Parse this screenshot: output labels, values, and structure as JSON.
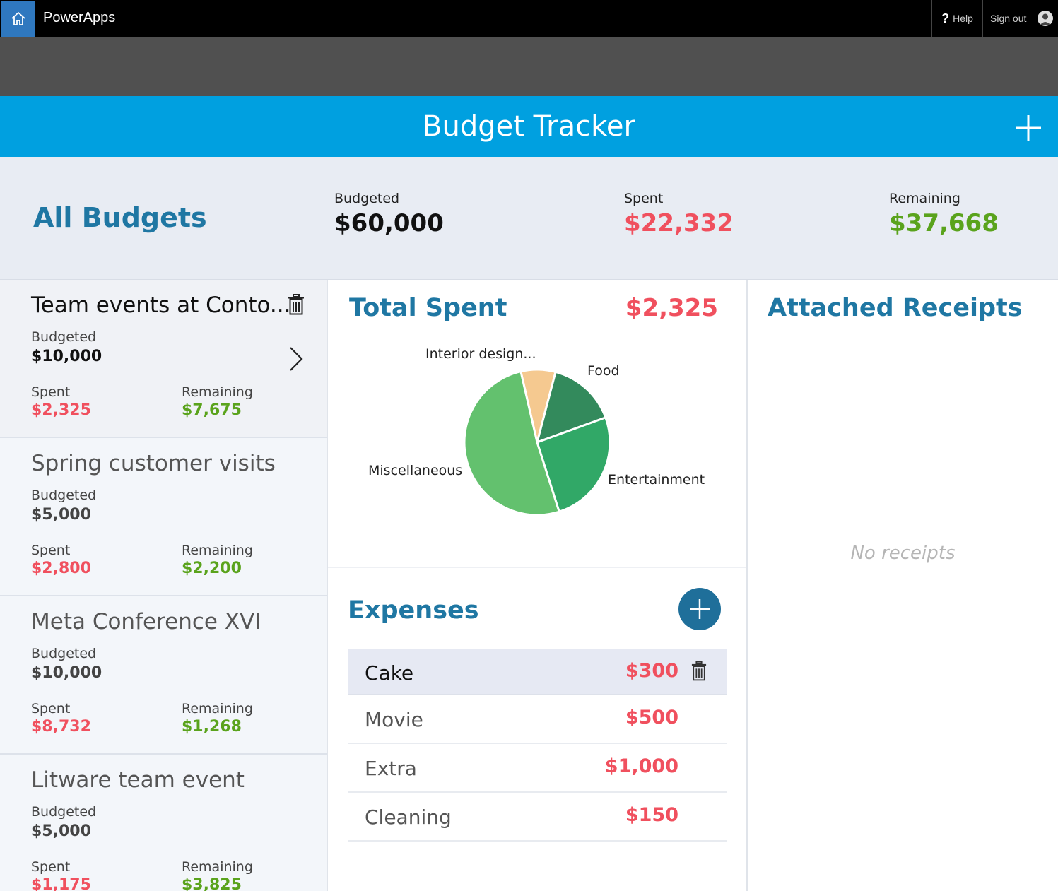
{
  "topbar": {
    "app_name": "PowerApps",
    "help_label": "Help",
    "help_glyph": "?",
    "signout_label": "Sign out"
  },
  "header": {
    "title": "Budget Tracker"
  },
  "summary": {
    "title": "All Budgets",
    "budgeted_label": "Budgeted",
    "budgeted_value": "$60,000",
    "spent_label": "Spent",
    "spent_value": "$22,332",
    "remaining_label": "Remaining",
    "remaining_value": "$37,668"
  },
  "budgets": [
    {
      "title": "Team events at Conto...",
      "budgeted_label": "Budgeted",
      "budgeted": "$10,000",
      "spent_label": "Spent",
      "spent": "$2,325",
      "remaining_label": "Remaining",
      "remaining": "$7,675"
    },
    {
      "title": "Spring customer visits",
      "budgeted_label": "Budgeted",
      "budgeted": "$5,000",
      "spent_label": "Spent",
      "spent": "$2,800",
      "remaining_label": "Remaining",
      "remaining": "$2,200"
    },
    {
      "title": "Meta Conference XVI",
      "budgeted_label": "Budgeted",
      "budgeted": "$10,000",
      "spent_label": "Spent",
      "spent": "$8,732",
      "remaining_label": "Remaining",
      "remaining": "$1,268"
    },
    {
      "title": "Litware team event",
      "budgeted_label": "Budgeted",
      "budgeted": "$5,000",
      "spent_label": "Spent",
      "spent": "$1,175",
      "remaining_label": "Remaining",
      "remaining": "$3,825"
    }
  ],
  "total_spent": {
    "title": "Total Spent",
    "value": "$2,325"
  },
  "pie": {
    "slices": [
      {
        "label": "Interior design...",
        "value": 150,
        "color": "#f5c990"
      },
      {
        "label": "Food",
        "value": 300,
        "color": "#338a5c"
      },
      {
        "label": "Entertainment",
        "value": 500,
        "color": "#31a867"
      },
      {
        "label": "Miscellaneous",
        "value": 1000,
        "color": "#63c16e"
      }
    ]
  },
  "expenses": {
    "title": "Expenses",
    "items": [
      {
        "name": "Cake",
        "amount": "$300"
      },
      {
        "name": "Movie",
        "amount": "$500"
      },
      {
        "name": "Extra",
        "amount": "$1,000"
      },
      {
        "name": "Cleaning",
        "amount": "$150"
      }
    ]
  },
  "receipts": {
    "title": "Attached Receipts",
    "empty_text": "No receipts"
  },
  "colors": {
    "accent": "#00a0e0",
    "heading": "#1f77a3",
    "spent": "#f0505e",
    "remaining": "#5aa31c"
  }
}
